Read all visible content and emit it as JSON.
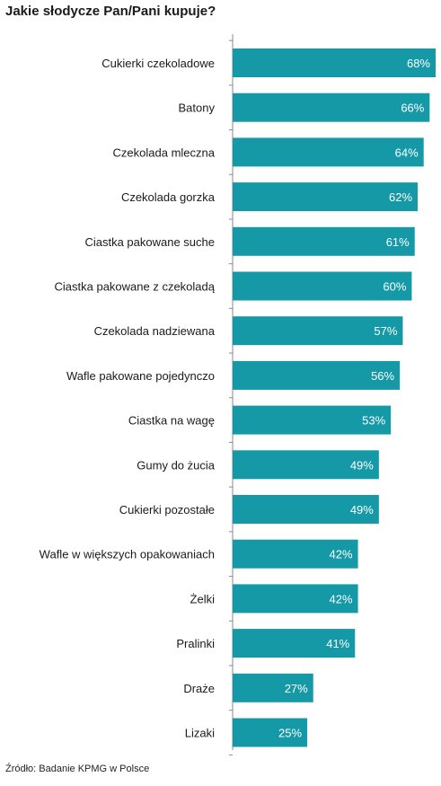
{
  "chart_data": {
    "type": "bar",
    "orientation": "horizontal",
    "title": "Jakie słodycze Pan/Pani kupuje?",
    "categories": [
      "Cukierki czekoladowe",
      "Batony",
      "Czekolada mleczna",
      "Czekolada gorzka",
      "Ciastka pakowane suche",
      "Ciastka pakowane z czekoladą",
      "Czekolada nadziewana",
      "Wafle pakowane pojedynczo",
      "Ciastka na wagę",
      "Gumy do żucia",
      "Cukierki pozostałe",
      "Wafle w większych opakowaniach",
      "Żelki",
      "Pralinki",
      "Draże",
      "Lizaki"
    ],
    "values": [
      68,
      66,
      64,
      62,
      61,
      60,
      57,
      56,
      53,
      49,
      49,
      42,
      42,
      41,
      27,
      25
    ],
    "value_labels": [
      "68%",
      "66%",
      "64%",
      "62%",
      "61%",
      "60%",
      "57%",
      "56%",
      "53%",
      "49%",
      "49%",
      "42%",
      "42%",
      "41%",
      "27%",
      "25%"
    ],
    "xlim": [
      0,
      68
    ],
    "grid": false,
    "bar_color": "#1599a6",
    "source": "Źródło: Badanie KPMG w Polsce"
  }
}
